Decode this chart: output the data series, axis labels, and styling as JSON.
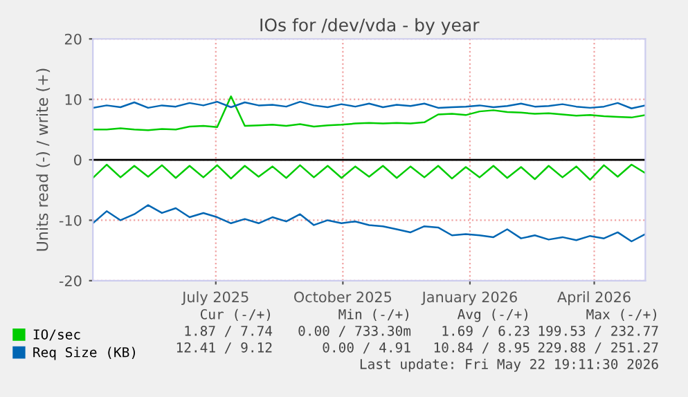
{
  "chart_data": {
    "type": "line",
    "title": "IOs for /dev/vda - by year",
    "ylabel": "Units read (-) / write (+)",
    "x": [
      "2025-04-03",
      "2025-04-13",
      "2025-04-23",
      "2025-05-03",
      "2025-05-13",
      "2025-05-23",
      "2025-06-02",
      "2025-06-12",
      "2025-06-22",
      "2025-07-02",
      "2025-07-12",
      "2025-07-22",
      "2025-08-01",
      "2025-08-11",
      "2025-08-21",
      "2025-08-31",
      "2025-09-10",
      "2025-09-20",
      "2025-09-30",
      "2025-10-10",
      "2025-10-20",
      "2025-10-30",
      "2025-11-09",
      "2025-11-19",
      "2025-11-29",
      "2025-12-09",
      "2025-12-19",
      "2025-12-29",
      "2026-01-08",
      "2026-01-18",
      "2026-01-28",
      "2026-02-07",
      "2026-02-17",
      "2026-02-27",
      "2026-03-09",
      "2026-03-19",
      "2026-03-29",
      "2026-04-08",
      "2026-04-18",
      "2026-04-28",
      "2026-05-08"
    ],
    "series": [
      {
        "name": "IO/sec",
        "color": "#00cc00",
        "values": [
          5.0,
          5.0,
          5.2,
          5.0,
          4.9,
          5.1,
          5.0,
          5.5,
          5.6,
          5.4,
          10.5,
          5.6,
          5.7,
          5.8,
          5.6,
          5.9,
          5.5,
          5.7,
          5.8,
          6.0,
          6.1,
          6.0,
          6.1,
          6.0,
          6.2,
          7.5,
          7.6,
          7.4,
          8.0,
          8.2,
          7.9,
          7.8,
          7.6,
          7.7,
          7.5,
          7.3,
          7.4,
          7.2,
          7.1,
          7.0,
          7.4
        ]
      },
      {
        "name": null,
        "color": "#00cc00",
        "values": [
          -3.0,
          -0.8,
          -2.9,
          -1.0,
          -2.8,
          -0.9,
          -3.0,
          -1.0,
          -2.9,
          -0.9,
          -3.1,
          -1.0,
          -2.8,
          -1.1,
          -3.0,
          -0.9,
          -2.9,
          -1.0,
          -3.0,
          -1.1,
          -2.8,
          -1.0,
          -3.0,
          -1.1,
          -2.9,
          -1.0,
          -3.1,
          -1.2,
          -2.9,
          -1.0,
          -3.0,
          -1.2,
          -3.2,
          -1.0,
          -2.9,
          -1.1,
          -3.3,
          -0.9,
          -2.8,
          -0.8,
          -2.2
        ]
      },
      {
        "name": "Req Size (KB)",
        "color": "#0066b3",
        "values": [
          8.6,
          9.0,
          8.7,
          9.5,
          8.6,
          9.0,
          8.8,
          9.4,
          9.0,
          9.6,
          8.7,
          9.5,
          9.0,
          9.1,
          8.8,
          9.6,
          9.0,
          8.7,
          9.2,
          8.8,
          9.3,
          8.7,
          9.1,
          8.9,
          9.3,
          8.6,
          8.7,
          8.8,
          9.0,
          8.7,
          8.9,
          9.3,
          8.8,
          8.9,
          9.2,
          8.8,
          8.6,
          8.8,
          9.4,
          8.5,
          9.0
        ]
      },
      {
        "name": null,
        "color": "#0066b3",
        "values": [
          -10.5,
          -8.5,
          -10.0,
          -9.0,
          -7.5,
          -8.8,
          -8.0,
          -9.5,
          -8.8,
          -9.5,
          -10.5,
          -9.8,
          -10.5,
          -9.5,
          -10.2,
          -9.0,
          -10.8,
          -10.0,
          -10.5,
          -10.2,
          -10.8,
          -11.0,
          -11.5,
          -12.0,
          -11.0,
          -11.2,
          -12.5,
          -12.3,
          -12.5,
          -12.8,
          -11.5,
          -13.0,
          -12.5,
          -13.2,
          -12.8,
          -13.3,
          -12.6,
          -13.0,
          -12.0,
          -13.5,
          -12.3
        ]
      }
    ],
    "xlim": [
      "2025-04-03",
      "2026-05-08"
    ],
    "xticks": [
      {
        "value": "2025-07-01",
        "label": "July 2025"
      },
      {
        "value": "2025-10-01",
        "label": "October 2025"
      },
      {
        "value": "2026-01-01",
        "label": "January 2026"
      },
      {
        "value": "2026-04-01",
        "label": "April 2026"
      }
    ],
    "ylim": [
      -20,
      20
    ],
    "yticks": [
      -20,
      -10,
      0,
      10,
      20
    ],
    "ref_lines": [
      {
        "axis": "y",
        "value": 0,
        "color": "#000000"
      }
    ],
    "grid": true,
    "legend": "bottom left",
    "line_style": "solid",
    "marker": "none",
    "annotations": [
      "Cur (-/+)",
      "Min (-/+)",
      "Avg (-/+)",
      "Max (-/+)",
      "1.87 / 7.74",
      "0.00 / 733.30m",
      "1.69 / 6.23",
      "199.53 / 232.77",
      "12.41 / 9.12",
      "0.00 / 4.91",
      "10.84 / 8.95",
      "229.88 / 251.27",
      "Last update: Fri May 22 19:11:30 2026"
    ]
  }
}
